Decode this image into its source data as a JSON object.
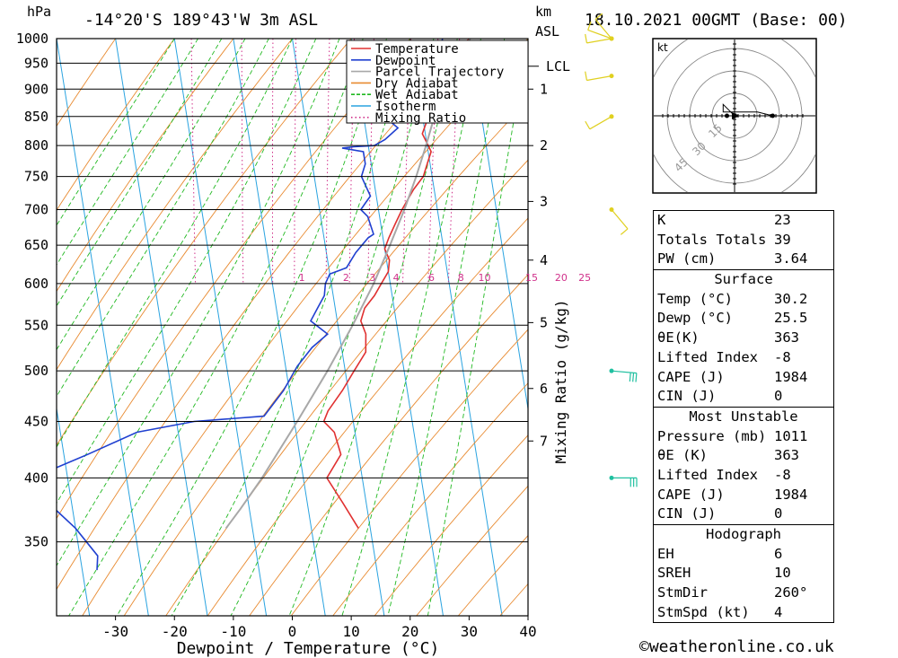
{
  "header": {
    "location": "-14°20'S 189°43'W 3m ASL",
    "datetime": "18.10.2021 00GMT (Base: 00)",
    "hpa_label": "hPa",
    "km_label": "km",
    "asl_label": "ASL"
  },
  "chart_data": {
    "type": "line",
    "title": "Skew-T log-P diagram",
    "xlabel": "Dewpoint / Temperature (°C)",
    "ylabel": "hPa",
    "secondary_ylabel": "Mixing Ratio (g/kg)",
    "xlim": [
      -40,
      40
    ],
    "ylim": [
      1000,
      300
    ],
    "x_ticks": [
      -30,
      -20,
      -10,
      0,
      10,
      20,
      30,
      40
    ],
    "pressure_ticks": [
      350,
      400,
      450,
      500,
      550,
      600,
      650,
      700,
      750,
      800,
      850,
      900,
      950,
      1000
    ],
    "km_ticks": [
      {
        "label": "7",
        "p": 432
      },
      {
        "label": "6",
        "p": 482
      },
      {
        "label": "5",
        "p": 553
      },
      {
        "label": "4",
        "p": 630
      },
      {
        "label": "3",
        "p": 712
      },
      {
        "label": "2",
        "p": 800
      },
      {
        "label": "1",
        "p": 900
      }
    ],
    "lcl": {
      "label": "LCL",
      "p": 944
    },
    "mixing_ratio_labels": [
      "1",
      "2",
      "3",
      "4",
      "6",
      "8",
      "10",
      "15",
      "20",
      "25"
    ],
    "mixing_ratio_label_temps": [
      -5,
      2.5,
      7,
      11,
      17,
      22,
      26,
      34,
      39,
      43
    ],
    "legend": [
      "Temperature",
      "Dewpoint",
      "Parcel Trajectory",
      "Dry Adiabat",
      "Wet Adiabat",
      "Isotherm",
      "Mixing Ratio"
    ],
    "series": [
      {
        "name": "Temperature",
        "color": "#e03030",
        "points": [
          [
            1000,
            30.2
          ],
          [
            985,
            28
          ],
          [
            970,
            26.5
          ],
          [
            955,
            26
          ],
          [
            940,
            25.6
          ],
          [
            920,
            24.5
          ],
          [
            900,
            23.5
          ],
          [
            880,
            22.8
          ],
          [
            860,
            21.5
          ],
          [
            840,
            20.5
          ],
          [
            820,
            19.5
          ],
          [
            805,
            20
          ],
          [
            790,
            20.5
          ],
          [
            770,
            19.5
          ],
          [
            750,
            18.5
          ],
          [
            730,
            16.5
          ],
          [
            700,
            14
          ],
          [
            680,
            12.5
          ],
          [
            660,
            11
          ],
          [
            645,
            10
          ],
          [
            630,
            10.5
          ],
          [
            615,
            10
          ],
          [
            600,
            8.5
          ],
          [
            585,
            7
          ],
          [
            570,
            5
          ],
          [
            555,
            4
          ],
          [
            540,
            4.5
          ],
          [
            520,
            4
          ],
          [
            500,
            1.5
          ],
          [
            480,
            -1
          ],
          [
            460,
            -4
          ],
          [
            450,
            -5
          ],
          [
            440,
            -3.5
          ],
          [
            420,
            -3
          ],
          [
            400,
            -6
          ],
          [
            380,
            -4
          ],
          [
            360,
            -2
          ]
        ]
      },
      {
        "name": "Dewpoint",
        "color": "#2040d0",
        "points": [
          [
            1000,
            25.5
          ],
          [
            985,
            25
          ],
          [
            970,
            24.5
          ],
          [
            950,
            24
          ],
          [
            945,
            21
          ],
          [
            930,
            18
          ],
          [
            910,
            16.5
          ],
          [
            890,
            13.5
          ],
          [
            870,
            12
          ],
          [
            860,
            13
          ],
          [
            850,
            14
          ],
          [
            840,
            14.5
          ],
          [
            830,
            15.5
          ],
          [
            810,
            13
          ],
          [
            800,
            11
          ],
          [
            798,
            7.5
          ],
          [
            796,
            5.5
          ],
          [
            790,
            9
          ],
          [
            770,
            9
          ],
          [
            750,
            8
          ],
          [
            720,
            9
          ],
          [
            710,
            8
          ],
          [
            700,
            7
          ],
          [
            690,
            8
          ],
          [
            665,
            8.5
          ],
          [
            660,
            7.5
          ],
          [
            640,
            5
          ],
          [
            630,
            4
          ],
          [
            620,
            3
          ],
          [
            612,
            0
          ],
          [
            600,
            -1
          ],
          [
            585,
            -1.5
          ],
          [
            570,
            -3
          ],
          [
            555,
            -4.5
          ],
          [
            540,
            -2
          ],
          [
            525,
            -5
          ],
          [
            505,
            -8
          ],
          [
            480,
            -11
          ],
          [
            455,
            -15
          ],
          [
            450,
            -27
          ],
          [
            440,
            -37
          ],
          [
            420,
            -46
          ],
          [
            400,
            -56
          ],
          [
            380,
            -54
          ],
          [
            360,
            -50
          ],
          [
            340,
            -47
          ],
          [
            330,
            -47.5
          ]
        ]
      },
      {
        "name": "Parcel Trajectory",
        "color": "#a8a8a8",
        "points": [
          [
            1000,
            30.2
          ],
          [
            944,
            25.6
          ],
          [
            900,
            24
          ],
          [
            850,
            22
          ],
          [
            800,
            19.8
          ],
          [
            750,
            17.3
          ],
          [
            700,
            14.4
          ],
          [
            650,
            11
          ],
          [
            600,
            7.2
          ],
          [
            550,
            2.5
          ],
          [
            500,
            -3
          ],
          [
            450,
            -9.5
          ],
          [
            400,
            -17
          ],
          [
            375,
            -21.5
          ],
          [
            360,
            -24.5
          ]
        ]
      }
    ],
    "wind_barbs": [
      {
        "p": 400,
        "color": "#20c0a0",
        "dir_deg": 270,
        "speed_kt": 25
      },
      {
        "p": 500,
        "color": "#20c0a0",
        "dir_deg": 275,
        "speed_kt": 25
      },
      {
        "p": 700,
        "color": "#e0d020",
        "dir_deg": 320,
        "speed_kt": 5
      },
      {
        "p": 850,
        "color": "#e0d020",
        "dir_deg": 60,
        "speed_kt": 5
      },
      {
        "p": 925,
        "color": "#e0d020",
        "dir_deg": 80,
        "speed_kt": 5
      },
      {
        "p": 1000,
        "color": "#e0d020",
        "dir_deg": 80,
        "speed_kt": 5
      },
      {
        "p": 1000,
        "color": "#e0d020",
        "dir_deg": 110,
        "speed_kt": 5
      },
      {
        "p": 1000,
        "color": "#e0d020",
        "dir_deg": 140,
        "speed_kt": 5
      }
    ]
  },
  "hodograph": {
    "unit_label": "kt",
    "ring_labels": [
      "15",
      "30",
      "45"
    ],
    "trace": [
      [
        0,
        0
      ],
      [
        -3,
        3
      ],
      [
        -3,
        1
      ],
      [
        6,
        1
      ],
      [
        10,
        0
      ]
    ],
    "markers": [
      [
        -2,
        0
      ],
      [
        10,
        0
      ]
    ],
    "storm_motion": [
      0,
      0
    ]
  },
  "indices": {
    "basic": [
      {
        "label": "K",
        "value": "23"
      },
      {
        "label": "Totals Totals",
        "value": "39"
      },
      {
        "label": "PW (cm)",
        "value": "3.64"
      }
    ],
    "surface": {
      "title": "Surface",
      "rows": [
        {
          "label": "Temp (°C)",
          "value": "30.2"
        },
        {
          "label": "Dewp (°C)",
          "value": "25.5"
        },
        {
          "label": "θE(K)",
          "value": "363"
        },
        {
          "label": "Lifted Index",
          "value": "-8"
        },
        {
          "label": "CAPE (J)",
          "value": "1984"
        },
        {
          "label": "CIN (J)",
          "value": "0"
        }
      ]
    },
    "most_unstable": {
      "title": "Most Unstable",
      "rows": [
        {
          "label": "Pressure (mb)",
          "value": "1011"
        },
        {
          "label": "θE (K)",
          "value": "363"
        },
        {
          "label": "Lifted Index",
          "value": "-8"
        },
        {
          "label": "CAPE (J)",
          "value": "1984"
        },
        {
          "label": "CIN (J)",
          "value": "0"
        }
      ]
    },
    "hodograph_params": {
      "title": "Hodograph",
      "rows": [
        {
          "label": "EH",
          "value": "6"
        },
        {
          "label": "SREH",
          "value": "10"
        },
        {
          "label": "StmDir",
          "value": "260°"
        },
        {
          "label": "StmSpd (kt)",
          "value": "4"
        }
      ]
    }
  },
  "footer": {
    "credit": "©weatheronline.co.uk"
  }
}
